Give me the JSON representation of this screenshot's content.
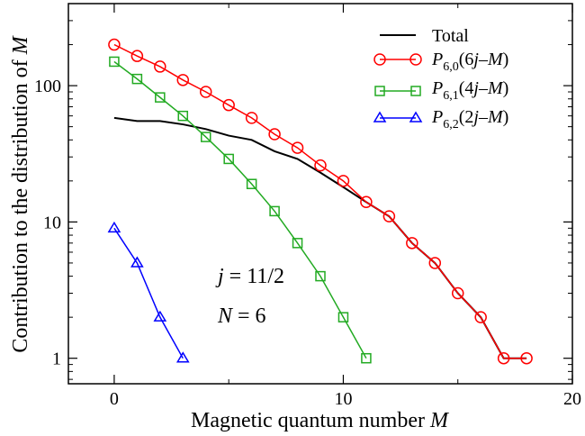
{
  "chart_data": {
    "type": "line",
    "title": "",
    "xlabel": "Magnetic quantum number M",
    "ylabel": "Contribution to the distribution of M",
    "xlim": [
      -2,
      20
    ],
    "ylim": [
      0.65,
      400
    ],
    "yscale": "log",
    "grid": false,
    "legend_position": "top-right",
    "x_ticks": [
      0,
      10,
      20
    ],
    "x_tick_labels": [
      "0",
      "10",
      "20"
    ],
    "y_ticks": [
      1,
      10,
      100
    ],
    "y_tick_labels": [
      "1",
      "10",
      "100"
    ],
    "series": [
      {
        "name": "Total",
        "color": "#000000",
        "marker": "none",
        "x": [
          0,
          1,
          2,
          3,
          4,
          5,
          6,
          7,
          8,
          9,
          10,
          11,
          12,
          13,
          14,
          15,
          16,
          17,
          18
        ],
        "y": [
          58,
          55,
          55,
          52,
          48,
          43,
          40,
          33,
          29,
          23,
          18,
          14,
          11,
          7,
          5,
          3,
          2,
          1,
          1
        ]
      },
      {
        "name": "P6,0(6j−M)",
        "color": "#ff0000",
        "marker": "circle",
        "x": [
          0,
          1,
          2,
          3,
          4,
          5,
          6,
          7,
          8,
          9,
          10,
          11,
          12,
          13,
          14,
          15,
          16,
          17,
          18
        ],
        "y": [
          200,
          165,
          138,
          110,
          90,
          72,
          58,
          44,
          35,
          26,
          20,
          14,
          11,
          7,
          5,
          3,
          2,
          1,
          1
        ]
      },
      {
        "name": "P6,1(4j−M)",
        "color": "#22aa22",
        "marker": "square",
        "x": [
          0,
          1,
          2,
          3,
          4,
          5,
          6,
          7,
          8,
          9,
          10,
          11
        ],
        "y": [
          150,
          112,
          82,
          60,
          42,
          29,
          19,
          12,
          7,
          4,
          2,
          1
        ]
      },
      {
        "name": "P6,2(2j−M)",
        "color": "#0000ff",
        "marker": "triangle",
        "x": [
          0,
          1,
          2,
          3
        ],
        "y": [
          9,
          5,
          2,
          1
        ]
      }
    ],
    "annotations": [
      "j = 11/2",
      "N = 6"
    ]
  }
}
